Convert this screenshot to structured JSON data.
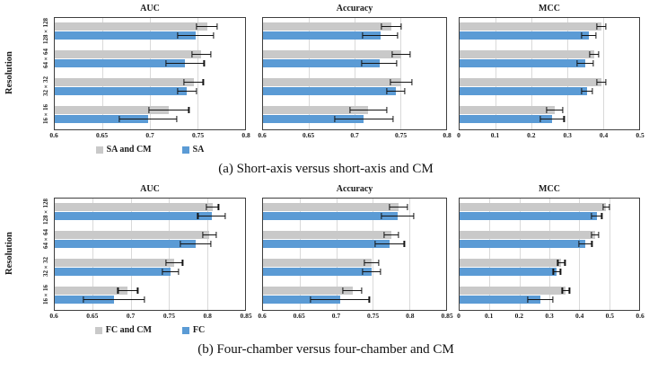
{
  "colors": {
    "series_gray": "#c9c9c9",
    "series_blue": "#5b9bd5",
    "grid": "#d9d9d9",
    "frame": "#3f3f3f",
    "error_bar": "#141414"
  },
  "chart_data": [
    {
      "panel": "a",
      "caption": "(a) Short-axis versus short-axis and CM",
      "type": "bar",
      "orientation": "horizontal",
      "ylabel": "Resolution",
      "categories": [
        "128×128",
        "64×64",
        "32×32",
        "16×16"
      ],
      "legend_entries": [
        {
          "label": "SA and CM",
          "color": "#c9c9c9"
        },
        {
          "label": "SA",
          "color": "#5b9bd5"
        }
      ],
      "charts": [
        {
          "title": "AUC",
          "xlim": [
            0.6,
            0.8
          ],
          "xticks": [
            "0.6",
            "0.65",
            "0.7",
            "0.75",
            "0.8"
          ],
          "series": [
            {
              "name": "SA and CM",
              "color": "#c9c9c9",
              "values": [
                0.76,
                0.754,
                0.746,
                0.72
              ],
              "errors": [
                0.011,
                0.01,
                0.01,
                0.021
              ]
            },
            {
              "name": "SA",
              "color": "#5b9bd5",
              "values": [
                0.748,
                0.737,
                0.739,
                0.698
              ],
              "errors": [
                0.019,
                0.02,
                0.01,
                0.03
              ]
            }
          ]
        },
        {
          "title": "Accuracy",
          "xlim": [
            0.6,
            0.8
          ],
          "xticks": [
            "0.6",
            "0.65",
            "0.7",
            "0.75",
            "0.8"
          ],
          "series": [
            {
              "name": "SA and CM",
              "color": "#c9c9c9",
              "values": [
                0.74,
                0.751,
                0.751,
                0.715
              ],
              "errors": [
                0.011,
                0.01,
                0.012,
                0.02
              ]
            },
            {
              "name": "SA",
              "color": "#5b9bd5",
              "values": [
                0.728,
                0.727,
                0.745,
                0.71
              ],
              "errors": [
                0.019,
                0.019,
                0.01,
                0.032
              ]
            }
          ]
        },
        {
          "title": "MCC",
          "xlim": [
            0,
            0.5
          ],
          "xticks": [
            "0",
            "0.1",
            "0.2",
            "0.3",
            "0.4",
            "0.5"
          ],
          "series": [
            {
              "name": "SA and CM",
              "color": "#c9c9c9",
              "values": [
                0.395,
                0.375,
                0.395,
                0.265
              ],
              "errors": [
                0.012,
                0.012,
                0.012,
                0.022
              ]
            },
            {
              "name": "SA",
              "color": "#5b9bd5",
              "values": [
                0.36,
                0.35,
                0.355,
                0.258
              ],
              "errors": [
                0.02,
                0.022,
                0.015,
                0.033
              ]
            }
          ]
        }
      ]
    },
    {
      "panel": "b",
      "caption": "(b) Four-chamber versus four-chamber and CM",
      "type": "bar",
      "orientation": "horizontal",
      "ylabel": "Resolution",
      "categories": [
        "128×128",
        "64×64",
        "32×32",
        "16×16"
      ],
      "legend_entries": [
        {
          "label": "FC and CM",
          "color": "#c9c9c9"
        },
        {
          "label": "FC",
          "color": "#5b9bd5"
        }
      ],
      "charts": [
        {
          "title": "AUC",
          "xlim": [
            0.6,
            0.85
          ],
          "xticks": [
            "0.6",
            "0.65",
            "0.7",
            "0.75",
            "0.8",
            "0.85"
          ],
          "series": [
            {
              "name": "FC and CM",
              "color": "#c9c9c9",
              "values": [
                0.807,
                0.803,
                0.757,
                0.696
              ],
              "errors": [
                0.008,
                0.009,
                0.011,
                0.013
              ]
            },
            {
              "name": "FC",
              "color": "#5b9bd5",
              "values": [
                0.806,
                0.785,
                0.752,
                0.678
              ],
              "errors": [
                0.018,
                0.02,
                0.011,
                0.04
              ]
            }
          ]
        },
        {
          "title": "Accuracy",
          "xlim": [
            0.6,
            0.85
          ],
          "xticks": [
            "0.6",
            "0.65",
            "0.7",
            "0.75",
            "0.8",
            "0.85"
          ],
          "series": [
            {
              "name": "FC and CM",
              "color": "#c9c9c9",
              "values": [
                0.785,
                0.775,
                0.748,
                0.722
              ],
              "errors": [
                0.012,
                0.01,
                0.01,
                0.013
              ]
            },
            {
              "name": "FC",
              "color": "#5b9bd5",
              "values": [
                0.784,
                0.773,
                0.748,
                0.705
              ],
              "errors": [
                0.022,
                0.02,
                0.012,
                0.04
              ]
            }
          ]
        },
        {
          "title": "MCC",
          "xlim": [
            0,
            0.6
          ],
          "xticks": [
            "0",
            "0.1",
            "0.2",
            "0.3",
            "0.4",
            "0.5",
            "0.6"
          ],
          "series": [
            {
              "name": "FC and CM",
              "color": "#c9c9c9",
              "values": [
                0.49,
                0.452,
                0.34,
                0.355
              ],
              "errors": [
                0.01,
                0.012,
                0.012,
                0.012
              ]
            },
            {
              "name": "FC",
              "color": "#5b9bd5",
              "values": [
                0.458,
                0.42,
                0.325,
                0.27
              ],
              "errors": [
                0.017,
                0.022,
                0.012,
                0.042
              ]
            }
          ]
        }
      ]
    }
  ]
}
